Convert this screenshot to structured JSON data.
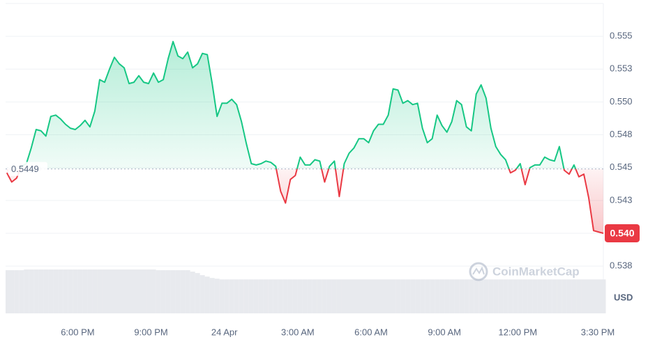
{
  "chart_data": {
    "type": "line",
    "x": [
      15.1,
      15.3,
      15.5,
      15.7,
      15.9,
      16.1,
      16.3,
      16.5,
      16.7,
      16.9,
      17.1,
      17.3,
      17.5,
      17.7,
      17.9,
      18.1,
      18.3,
      18.5,
      18.7,
      18.9,
      19.1,
      19.3,
      19.5,
      19.7,
      19.9,
      20.1,
      20.3,
      20.5,
      20.7,
      20.9,
      21.1,
      21.3,
      21.5,
      21.7,
      21.9,
      22.1,
      22.3,
      22.5,
      22.7,
      22.9,
      23.1,
      23.3,
      23.5,
      23.7,
      23.9,
      24.1,
      24.3,
      24.5,
      24.7,
      24.9,
      25.1,
      25.3,
      25.5,
      25.7,
      25.9,
      26.1,
      26.3,
      26.5,
      26.7,
      26.9,
      27.1,
      27.3,
      27.5,
      27.7,
      27.9,
      28.1,
      28.3,
      28.5,
      28.7,
      28.9,
      29.1,
      29.3,
      29.5,
      29.7,
      29.9,
      30.1,
      30.3,
      30.5,
      30.7,
      30.9,
      31.1,
      31.3,
      31.5,
      31.7,
      31.9,
      32.1,
      32.3,
      32.5,
      32.7,
      32.9,
      33.1,
      33.3,
      33.5,
      33.7,
      33.9,
      34.1,
      34.3,
      34.5,
      34.7,
      34.9,
      35.1,
      35.3,
      35.5,
      35.7,
      35.9,
      36.1,
      36.3,
      36.5,
      36.7,
      36.9,
      37.1,
      37.3,
      37.5,
      37.7,
      37.9,
      38.1,
      38.3,
      38.5,
      38.7,
      38.9,
      39.1,
      39.3,
      39.5
    ],
    "series": [
      {
        "up_color": "#16c784",
        "down_color": "#ea3943",
        "values": [
          0.5446,
          0.5439,
          0.5442,
          0.5451,
          0.5453,
          0.5465,
          0.5479,
          0.5478,
          0.5474,
          0.5489,
          0.549,
          0.5487,
          0.5483,
          0.548,
          0.5479,
          0.5482,
          0.5486,
          0.5481,
          0.5493,
          0.5517,
          0.5515,
          0.5525,
          0.5534,
          0.5529,
          0.5526,
          0.5514,
          0.5515,
          0.552,
          0.5515,
          0.5514,
          0.5522,
          0.5515,
          0.5517,
          0.5533,
          0.5546,
          0.5535,
          0.5533,
          0.5538,
          0.5526,
          0.5529,
          0.5537,
          0.5536,
          0.5514,
          0.5489,
          0.5499,
          0.5499,
          0.5502,
          0.5498,
          0.5485,
          0.5468,
          0.5453,
          0.5452,
          0.5453,
          0.5455,
          0.5454,
          0.5451,
          0.5432,
          0.5423,
          0.5441,
          0.5444,
          0.5458,
          0.5452,
          0.5452,
          0.5456,
          0.5455,
          0.5439,
          0.5451,
          0.5455,
          0.5428,
          0.5453,
          0.5461,
          0.5465,
          0.5472,
          0.5472,
          0.5469,
          0.5478,
          0.5483,
          0.5483,
          0.549,
          0.551,
          0.5509,
          0.5499,
          0.5501,
          0.5498,
          0.5499,
          0.548,
          0.5469,
          0.5472,
          0.549,
          0.5482,
          0.5477,
          0.5485,
          0.5501,
          0.5498,
          0.5481,
          0.5478,
          0.5506,
          0.5513,
          0.5503,
          0.548,
          0.5466,
          0.546,
          0.5456,
          0.5446,
          0.5448,
          0.5453,
          0.5437,
          0.545,
          0.5452,
          0.5452,
          0.5458,
          0.5456,
          0.5455,
          0.5466,
          0.5448,
          0.5445,
          0.5452,
          0.5443,
          0.5445,
          0.5427,
          0.5402,
          0.5401,
          0.54
        ]
      }
    ],
    "volume": {
      "color": "#e8eaee",
      "values": [
        61,
        61,
        61,
        61,
        62,
        62,
        62,
        62,
        62,
        62,
        62,
        62,
        62,
        62,
        62,
        62,
        62,
        62,
        62,
        62,
        62,
        62,
        62,
        62,
        62,
        62,
        62,
        62,
        62,
        62,
        62,
        61,
        61,
        61,
        61,
        61,
        61,
        61,
        59,
        57,
        54,
        52,
        50,
        49,
        48,
        48,
        48,
        48,
        48,
        48,
        48,
        48,
        48,
        48,
        48,
        48,
        48,
        48,
        48,
        48,
        48,
        48,
        48,
        48,
        48,
        48,
        48,
        48,
        48,
        48,
        48,
        48,
        48,
        48,
        48,
        48,
        48,
        48,
        48,
        48,
        48,
        48,
        48,
        48,
        48,
        48,
        48,
        48,
        48,
        48,
        48,
        48,
        48,
        48,
        48,
        48,
        48,
        48,
        48,
        48,
        48,
        48,
        48,
        48,
        48,
        48,
        48,
        48,
        48,
        48,
        48,
        48,
        48,
        48,
        48,
        48,
        48,
        48,
        48,
        48,
        48,
        48,
        48
      ]
    },
    "baseline": 0.5449,
    "price_label": "0.540",
    "currency": "USD",
    "watermark": "CoinMarketCap",
    "xlim": [
      15.05,
      39.5
    ],
    "xticks": [
      {
        "value": 18,
        "label": "6:00 PM"
      },
      {
        "value": 21,
        "label": "9:00 PM"
      },
      {
        "value": 24,
        "label": "24 Apr"
      },
      {
        "value": 27,
        "label": "3:00 AM"
      },
      {
        "value": 30,
        "label": "6:00 AM"
      },
      {
        "value": 33,
        "label": "9:00 AM"
      },
      {
        "value": 36,
        "label": "12:00 PM"
      },
      {
        "value": 39.5,
        "label": "3:30 PM"
      }
    ],
    "ylim": [
      0.5339,
      0.5575
    ],
    "yticks": [
      {
        "value": 0.5375,
        "label": "0.538"
      },
      {
        "value": 0.54,
        "label": "0.540"
      },
      {
        "value": 0.5425,
        "label": "0.543"
      },
      0.545,
      {
        "value": 0.5475,
        "label": "0.548"
      },
      {
        "value": 0.55,
        "label": "0.550"
      },
      {
        "value": 0.5525,
        "label": "0.553"
      },
      0.555
    ],
    "grid": true
  }
}
